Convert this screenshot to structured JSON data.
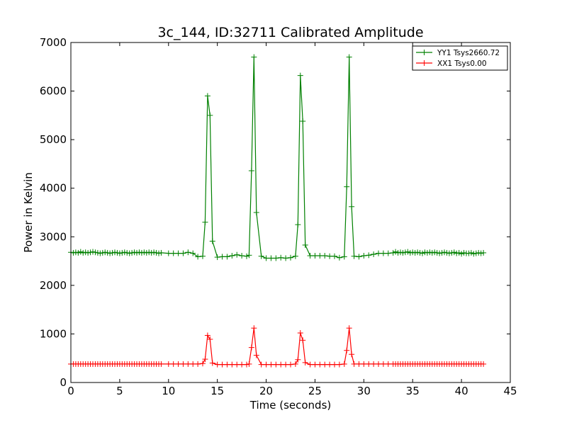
{
  "chart_data": {
    "type": "line",
    "title": "3c_144, ID:32711 Calibrated Amplitude",
    "xlabel": "Time (seconds)",
    "ylabel": "Power in Kelvin",
    "xlim": [
      0,
      45
    ],
    "ylim": [
      0,
      7000
    ],
    "xticks": [
      0,
      5,
      10,
      15,
      20,
      25,
      30,
      35,
      40,
      45
    ],
    "yticks": [
      0,
      1000,
      2000,
      3000,
      4000,
      5000,
      6000,
      7000
    ],
    "grid": false,
    "legend_position": "top-right",
    "marker": "+",
    "series": [
      {
        "name": "YY1 Tsys2660.72",
        "color": "#008000",
        "points": [
          [
            0.0,
            2680
          ],
          [
            0.25,
            2670
          ],
          [
            0.5,
            2680
          ],
          [
            0.75,
            2670
          ],
          [
            1.0,
            2690
          ],
          [
            1.25,
            2670
          ],
          [
            1.5,
            2680
          ],
          [
            1.75,
            2670
          ],
          [
            2.0,
            2680
          ],
          [
            2.25,
            2690
          ],
          [
            2.5,
            2680
          ],
          [
            2.75,
            2670
          ],
          [
            3.0,
            2660
          ],
          [
            3.25,
            2670
          ],
          [
            3.5,
            2680
          ],
          [
            3.75,
            2670
          ],
          [
            4.0,
            2660
          ],
          [
            4.25,
            2670
          ],
          [
            4.5,
            2680
          ],
          [
            4.75,
            2670
          ],
          [
            5.0,
            2660
          ],
          [
            5.25,
            2670
          ],
          [
            5.5,
            2680
          ],
          [
            5.75,
            2670
          ],
          [
            6.0,
            2660
          ],
          [
            6.25,
            2670
          ],
          [
            6.5,
            2680
          ],
          [
            6.75,
            2670
          ],
          [
            7.0,
            2680
          ],
          [
            7.25,
            2670
          ],
          [
            7.5,
            2680
          ],
          [
            7.75,
            2670
          ],
          [
            8.0,
            2680
          ],
          [
            8.25,
            2670
          ],
          [
            8.5,
            2680
          ],
          [
            8.75,
            2670
          ],
          [
            9.0,
            2660
          ],
          [
            9.25,
            2670
          ],
          [
            10.0,
            2660
          ],
          [
            10.5,
            2660
          ],
          [
            11.0,
            2660
          ],
          [
            11.5,
            2660
          ],
          [
            12.0,
            2680
          ],
          [
            12.5,
            2660
          ],
          [
            13.0,
            2590
          ],
          [
            13.5,
            2600
          ],
          [
            13.75,
            3300
          ],
          [
            14.0,
            5900
          ],
          [
            14.25,
            5500
          ],
          [
            14.5,
            2910
          ],
          [
            15.0,
            2580
          ],
          [
            15.5,
            2590
          ],
          [
            16.0,
            2590
          ],
          [
            16.5,
            2610
          ],
          [
            17.0,
            2630
          ],
          [
            17.5,
            2610
          ],
          [
            18.0,
            2600
          ],
          [
            18.25,
            2620
          ],
          [
            18.5,
            4360
          ],
          [
            18.75,
            6700
          ],
          [
            19.0,
            3500
          ],
          [
            19.5,
            2600
          ],
          [
            20.0,
            2560
          ],
          [
            20.5,
            2560
          ],
          [
            21.0,
            2560
          ],
          [
            21.5,
            2570
          ],
          [
            22.0,
            2560
          ],
          [
            22.5,
            2570
          ],
          [
            23.0,
            2600
          ],
          [
            23.25,
            3250
          ],
          [
            23.5,
            6320
          ],
          [
            23.75,
            5380
          ],
          [
            24.0,
            2830
          ],
          [
            24.5,
            2610
          ],
          [
            25.0,
            2610
          ],
          [
            25.5,
            2610
          ],
          [
            26.0,
            2610
          ],
          [
            26.5,
            2600
          ],
          [
            27.0,
            2600
          ],
          [
            27.5,
            2570
          ],
          [
            28.0,
            2590
          ],
          [
            28.25,
            4030
          ],
          [
            28.5,
            6700
          ],
          [
            28.75,
            3620
          ],
          [
            29.0,
            2600
          ],
          [
            29.5,
            2590
          ],
          [
            30.0,
            2610
          ],
          [
            30.5,
            2620
          ],
          [
            31.0,
            2640
          ],
          [
            31.5,
            2660
          ],
          [
            32.0,
            2660
          ],
          [
            32.5,
            2660
          ],
          [
            33.0,
            2670
          ],
          [
            33.25,
            2690
          ],
          [
            33.5,
            2670
          ],
          [
            33.75,
            2680
          ],
          [
            34.0,
            2670
          ],
          [
            34.25,
            2680
          ],
          [
            34.5,
            2690
          ],
          [
            34.75,
            2670
          ],
          [
            35.0,
            2680
          ],
          [
            35.25,
            2670
          ],
          [
            35.5,
            2680
          ],
          [
            35.75,
            2670
          ],
          [
            36.0,
            2660
          ],
          [
            36.25,
            2680
          ],
          [
            36.5,
            2670
          ],
          [
            36.75,
            2680
          ],
          [
            37.0,
            2670
          ],
          [
            37.25,
            2680
          ],
          [
            37.5,
            2670
          ],
          [
            37.75,
            2660
          ],
          [
            38.0,
            2670
          ],
          [
            38.25,
            2680
          ],
          [
            38.5,
            2670
          ],
          [
            38.75,
            2660
          ],
          [
            39.0,
            2670
          ],
          [
            39.25,
            2680
          ],
          [
            39.5,
            2660
          ],
          [
            39.75,
            2670
          ],
          [
            40.0,
            2650
          ],
          [
            40.25,
            2670
          ],
          [
            40.5,
            2660
          ],
          [
            40.75,
            2660
          ],
          [
            41.0,
            2670
          ],
          [
            41.25,
            2650
          ],
          [
            41.5,
            2660
          ],
          [
            41.75,
            2670
          ],
          [
            42.0,
            2660
          ],
          [
            42.25,
            2670
          ]
        ]
      },
      {
        "name": "XX1 Tsys0.00",
        "color": "#ff0000",
        "points": [
          [
            0.0,
            380
          ],
          [
            0.25,
            380
          ],
          [
            0.5,
            380
          ],
          [
            0.75,
            380
          ],
          [
            1.0,
            380
          ],
          [
            1.25,
            380
          ],
          [
            1.5,
            380
          ],
          [
            1.75,
            380
          ],
          [
            2.0,
            380
          ],
          [
            2.25,
            380
          ],
          [
            2.5,
            380
          ],
          [
            2.75,
            380
          ],
          [
            3.0,
            380
          ],
          [
            3.25,
            380
          ],
          [
            3.5,
            380
          ],
          [
            3.75,
            380
          ],
          [
            4.0,
            380
          ],
          [
            4.25,
            380
          ],
          [
            4.5,
            380
          ],
          [
            4.75,
            380
          ],
          [
            5.0,
            380
          ],
          [
            5.25,
            380
          ],
          [
            5.5,
            380
          ],
          [
            5.75,
            380
          ],
          [
            6.0,
            380
          ],
          [
            6.25,
            380
          ],
          [
            6.5,
            380
          ],
          [
            6.75,
            380
          ],
          [
            7.0,
            380
          ],
          [
            7.25,
            380
          ],
          [
            7.5,
            380
          ],
          [
            7.75,
            380
          ],
          [
            8.0,
            380
          ],
          [
            8.25,
            380
          ],
          [
            8.5,
            380
          ],
          [
            8.75,
            380
          ],
          [
            9.0,
            380
          ],
          [
            9.25,
            380
          ],
          [
            10.0,
            380
          ],
          [
            10.5,
            380
          ],
          [
            11.0,
            380
          ],
          [
            11.5,
            380
          ],
          [
            12.0,
            380
          ],
          [
            12.5,
            380
          ],
          [
            13.0,
            380
          ],
          [
            13.5,
            390
          ],
          [
            13.75,
            480
          ],
          [
            14.0,
            970
          ],
          [
            14.25,
            890
          ],
          [
            14.5,
            400
          ],
          [
            15.0,
            370
          ],
          [
            15.5,
            370
          ],
          [
            16.0,
            370
          ],
          [
            16.5,
            370
          ],
          [
            17.0,
            370
          ],
          [
            17.5,
            370
          ],
          [
            18.0,
            370
          ],
          [
            18.25,
            380
          ],
          [
            18.5,
            720
          ],
          [
            18.75,
            1120
          ],
          [
            19.0,
            560
          ],
          [
            19.5,
            370
          ],
          [
            20.0,
            370
          ],
          [
            20.5,
            370
          ],
          [
            21.0,
            370
          ],
          [
            21.5,
            370
          ],
          [
            22.0,
            370
          ],
          [
            22.5,
            370
          ],
          [
            23.0,
            380
          ],
          [
            23.25,
            470
          ],
          [
            23.5,
            1020
          ],
          [
            23.75,
            870
          ],
          [
            24.0,
            410
          ],
          [
            24.5,
            370
          ],
          [
            25.0,
            370
          ],
          [
            25.5,
            370
          ],
          [
            26.0,
            370
          ],
          [
            26.5,
            370
          ],
          [
            27.0,
            370
          ],
          [
            27.5,
            370
          ],
          [
            28.0,
            380
          ],
          [
            28.25,
            660
          ],
          [
            28.5,
            1120
          ],
          [
            28.75,
            580
          ],
          [
            29.0,
            380
          ],
          [
            29.5,
            380
          ],
          [
            30.0,
            380
          ],
          [
            30.5,
            380
          ],
          [
            31.0,
            380
          ],
          [
            31.5,
            380
          ],
          [
            32.0,
            380
          ],
          [
            32.5,
            380
          ],
          [
            33.0,
            380
          ],
          [
            33.25,
            380
          ],
          [
            33.5,
            380
          ],
          [
            33.75,
            380
          ],
          [
            34.0,
            380
          ],
          [
            34.25,
            380
          ],
          [
            34.5,
            380
          ],
          [
            34.75,
            380
          ],
          [
            35.0,
            380
          ],
          [
            35.25,
            380
          ],
          [
            35.5,
            380
          ],
          [
            35.75,
            380
          ],
          [
            36.0,
            380
          ],
          [
            36.25,
            380
          ],
          [
            36.5,
            380
          ],
          [
            36.75,
            380
          ],
          [
            37.0,
            380
          ],
          [
            37.25,
            380
          ],
          [
            37.5,
            380
          ],
          [
            37.75,
            380
          ],
          [
            38.0,
            380
          ],
          [
            38.25,
            380
          ],
          [
            38.5,
            380
          ],
          [
            38.75,
            380
          ],
          [
            39.0,
            380
          ],
          [
            39.25,
            380
          ],
          [
            39.5,
            380
          ],
          [
            39.75,
            380
          ],
          [
            40.0,
            380
          ],
          [
            40.25,
            380
          ],
          [
            40.5,
            380
          ],
          [
            40.75,
            380
          ],
          [
            41.0,
            380
          ],
          [
            41.25,
            380
          ],
          [
            41.5,
            380
          ],
          [
            41.75,
            380
          ],
          [
            42.0,
            380
          ],
          [
            42.25,
            380
          ]
        ]
      }
    ]
  }
}
